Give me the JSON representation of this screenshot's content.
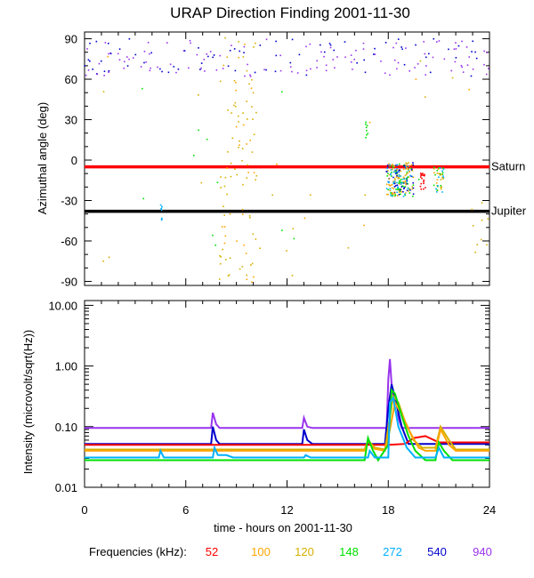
{
  "title": "URAP Direction Finding  2001-11-30",
  "xlabel": "time - hours on 2001-11-30",
  "freq_label": "Frequencies (kHz):",
  "frequencies": [
    {
      "label": "52",
      "color": "#ff0000"
    },
    {
      "label": "100",
      "color": "#ffa500"
    },
    {
      "label": "120",
      "color": "#d4b000"
    },
    {
      "label": "148",
      "color": "#00e000"
    },
    {
      "label": "272",
      "color": "#00b0ff"
    },
    {
      "label": "540",
      "color": "#0000cc"
    },
    {
      "label": "940",
      "color": "#9933ee"
    }
  ],
  "chart_data": [
    {
      "type": "scatter",
      "title": "URAP Direction Finding  2001-11-30",
      "xlabel": "",
      "ylabel": "Azimuthal angle (deg)",
      "xlim": [
        0,
        24
      ],
      "ylim": [
        -93,
        95
      ],
      "xticks": [
        "0",
        "6",
        "12",
        "18",
        "24"
      ],
      "yticks": [
        {
          "value": 90,
          "label": "90"
        },
        {
          "value": 60,
          "label": "60"
        },
        {
          "value": 30,
          "label": "30"
        },
        {
          "value": 0,
          "label": "0"
        },
        {
          "value": -30,
          "label": "-30"
        },
        {
          "value": -60,
          "label": "-60"
        },
        {
          "value": -90,
          "label": "-90"
        }
      ],
      "reference_lines": [
        {
          "name": "Saturn",
          "value": -5,
          "color": "#ff0000"
        },
        {
          "name": "Jupiter",
          "value": -38,
          "color": "#000000"
        }
      ]
    },
    {
      "type": "line",
      "yscale": "log",
      "xlabel": "time - hours on 2001-11-30",
      "ylabel": "Intensity (microvolt/sqrt(Hz))",
      "xlim": [
        0,
        24
      ],
      "ylim": [
        0.01,
        12
      ],
      "xticks": [
        "0",
        "6",
        "12",
        "18",
        "24"
      ],
      "yticks": [
        {
          "value": 10,
          "label": "10.00"
        },
        {
          "value": 1,
          "label": "1.00"
        },
        {
          "value": 0.1,
          "label": "0.10"
        },
        {
          "value": 0.01,
          "label": "0.01"
        }
      ],
      "series": [
        {
          "name": "940",
          "color": "#9933ee",
          "x": [
            0,
            7.5,
            7.6,
            7.8,
            8,
            12.9,
            13,
            13.2,
            13.5,
            17.9,
            18,
            18.1,
            18.2,
            18.4,
            18.8,
            24
          ],
          "y": [
            0.095,
            0.095,
            0.17,
            0.11,
            0.095,
            0.095,
            0.14,
            0.1,
            0.095,
            0.095,
            0.6,
            1.3,
            0.5,
            0.2,
            0.095,
            0.095
          ]
        },
        {
          "name": "540",
          "color": "#0000cc",
          "x": [
            0,
            7.5,
            7.6,
            7.8,
            8,
            12.9,
            13,
            13.2,
            13.5,
            17.8,
            18,
            18.2,
            18.4,
            18.8,
            19.2,
            24
          ],
          "y": [
            0.052,
            0.052,
            0.1,
            0.06,
            0.052,
            0.052,
            0.09,
            0.06,
            0.052,
            0.052,
            0.2,
            0.5,
            0.3,
            0.1,
            0.052,
            0.052
          ]
        },
        {
          "name": "52",
          "color": "#ff0000",
          "x": [
            0,
            17.5,
            18,
            19,
            19.5,
            20.2,
            21,
            24
          ],
          "y": [
            0.05,
            0.05,
            0.05,
            0.052,
            0.065,
            0.07,
            0.055,
            0.055
          ]
        },
        {
          "name": "120",
          "color": "#d4b000",
          "x": [
            0,
            16.6,
            16.8,
            17.2,
            17.8,
            18,
            18.3,
            18.6,
            19,
            19.5,
            20,
            20.8,
            21.1,
            21.6,
            22,
            24
          ],
          "y": [
            0.042,
            0.042,
            0.06,
            0.045,
            0.042,
            0.1,
            0.32,
            0.25,
            0.12,
            0.06,
            0.045,
            0.045,
            0.1,
            0.06,
            0.042,
            0.042
          ]
        },
        {
          "name": "100",
          "color": "#ffa500",
          "x": [
            0,
            16.6,
            16.8,
            17.2,
            17.8,
            18.1,
            18.4,
            18.8,
            19.3,
            19.8,
            20.2,
            20.8,
            21.1,
            21.6,
            22,
            24
          ],
          "y": [
            0.04,
            0.04,
            0.058,
            0.043,
            0.04,
            0.09,
            0.25,
            0.16,
            0.08,
            0.045,
            0.04,
            0.04,
            0.09,
            0.05,
            0.04,
            0.04
          ]
        },
        {
          "name": "148",
          "color": "#00e000",
          "x": [
            0,
            16.6,
            16.8,
            17.1,
            17.4,
            18,
            18.2,
            18.4,
            18.8,
            19.2,
            19.6,
            20.2,
            20.8,
            21,
            21.3,
            21.8,
            24
          ],
          "y": [
            0.028,
            0.028,
            0.065,
            0.04,
            0.028,
            0.05,
            0.4,
            0.35,
            0.15,
            0.07,
            0.04,
            0.028,
            0.028,
            0.055,
            0.04,
            0.028,
            0.028
          ]
        },
        {
          "name": "272",
          "color": "#00b0ff",
          "x": [
            0,
            4.4,
            4.5,
            4.7,
            7.6,
            7.7,
            7.9,
            8.4,
            8.8,
            13,
            13.1,
            13.4,
            16.8,
            16.9,
            17.2,
            18,
            18.1,
            18.3,
            18.6,
            19.1,
            19.6,
            20.8,
            21,
            21.3,
            24
          ],
          "y": [
            0.031,
            0.031,
            0.04,
            0.031,
            0.031,
            0.045,
            0.034,
            0.034,
            0.031,
            0.031,
            0.034,
            0.031,
            0.031,
            0.04,
            0.031,
            0.031,
            0.25,
            0.3,
            0.1,
            0.045,
            0.031,
            0.031,
            0.045,
            0.031,
            0.031
          ]
        }
      ]
    }
  ]
}
